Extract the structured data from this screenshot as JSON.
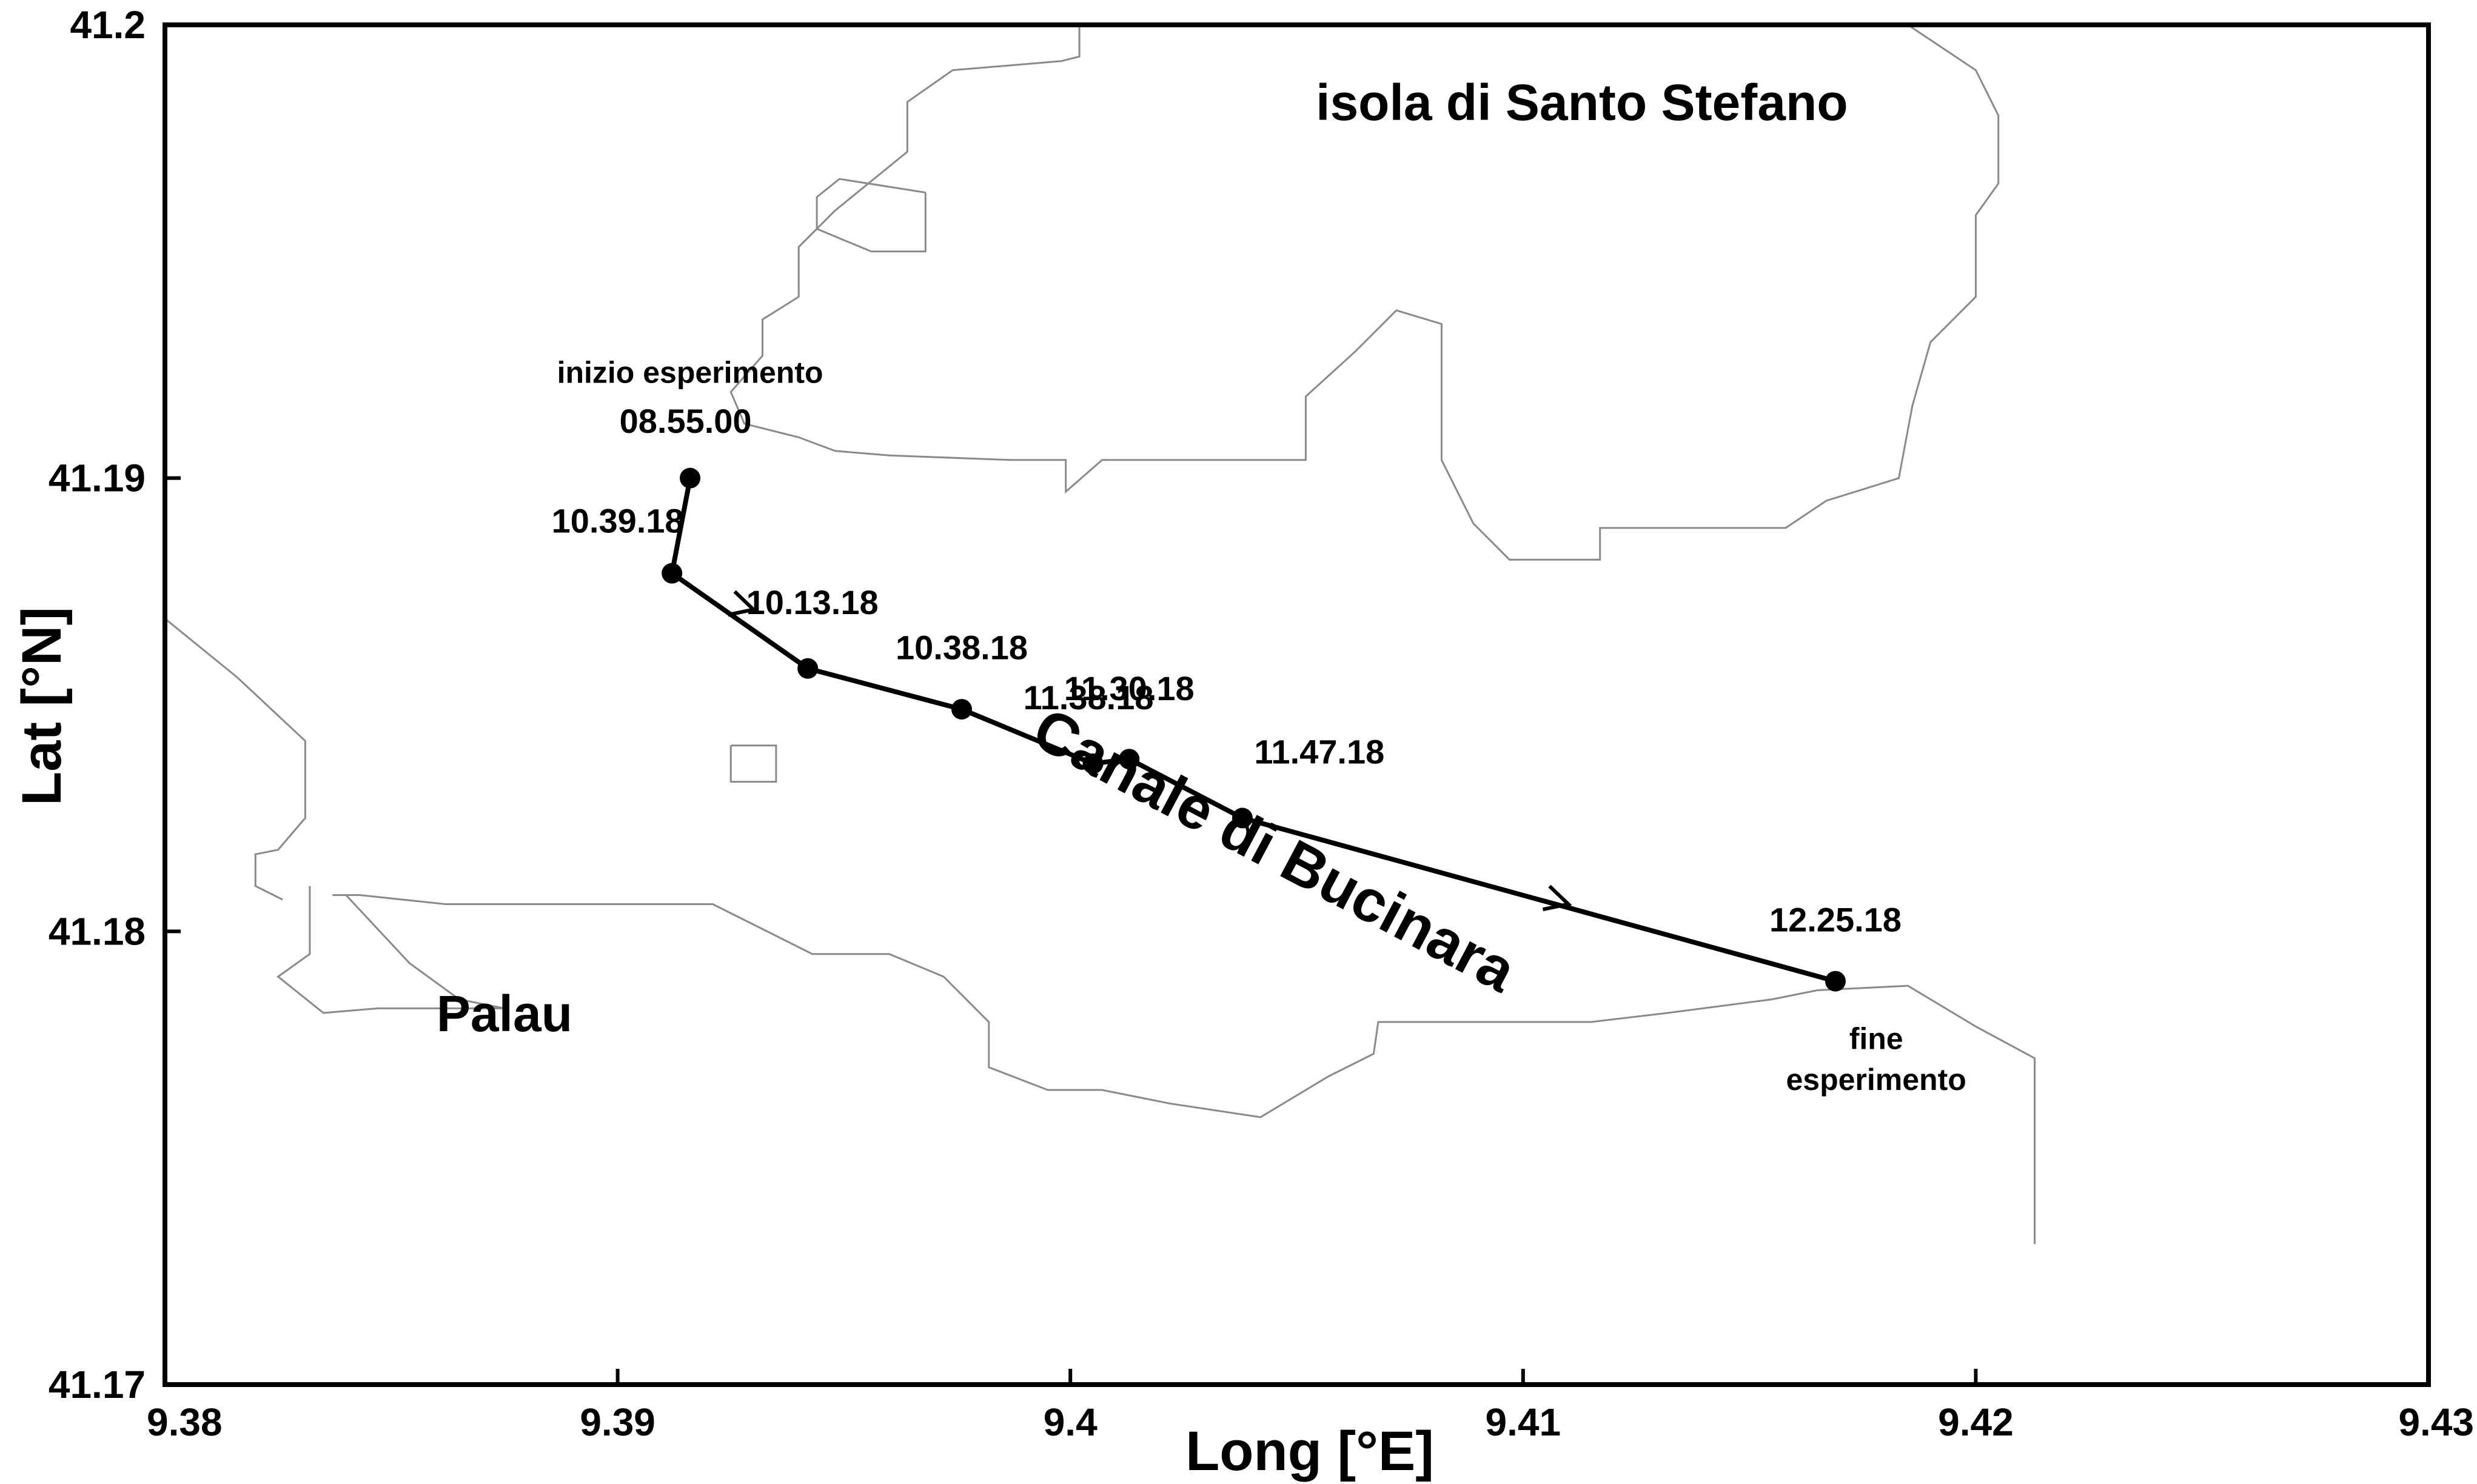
{
  "chart_data": {
    "type": "map",
    "xlabel": "Long [°E]",
    "ylabel": "Lat [°N]",
    "xlim": [
      9.38,
      9.43
    ],
    "ylim": [
      41.17,
      41.2
    ],
    "x_ticks": [
      {
        "value": 9.38,
        "label": "9.38"
      },
      {
        "value": 9.39,
        "label": "9.39"
      },
      {
        "value": 9.4,
        "label": "9.4"
      },
      {
        "value": 9.41,
        "label": "9.41"
      },
      {
        "value": 9.42,
        "label": "9.42"
      },
      {
        "value": 9.43,
        "label": "9.43"
      }
    ],
    "y_ticks": [
      {
        "value": 41.17,
        "label": "41.17"
      },
      {
        "value": 41.18,
        "label": "41.18"
      },
      {
        "value": 41.19,
        "label": "41.19"
      },
      {
        "value": 41.2,
        "label": "41.2"
      }
    ],
    "grid": false,
    "places": [
      {
        "name": "isola di Santo Stefano",
        "lon": 9.4113,
        "lat": 41.1979
      },
      {
        "name": "Palau",
        "lon": 9.3875,
        "lat": 41.1778
      },
      {
        "name": "Canale di Bucinara",
        "lon": 9.4043,
        "lat": 41.1814,
        "rotation": 28
      }
    ],
    "track": [
      {
        "time": "08.55.00",
        "lon": 9.3916,
        "lat": 41.19
      },
      {
        "time": "10.39.18",
        "lon": 9.3912,
        "lat": 41.1879
      },
      {
        "time": "10.13.18",
        "lon": 9.3942,
        "lat": 41.1858
      },
      {
        "time": "10.38.18",
        "lon": 9.3976,
        "lat": 41.1849
      },
      {
        "time": "11.38.18",
        "lon": 9.4005,
        "lat": 41.1837
      },
      {
        "time": "11.30.18",
        "lon": 9.4013,
        "lat": 41.1838
      },
      {
        "time": "11.47.18",
        "lon": 9.4038,
        "lat": 41.1825
      },
      {
        "time": "12.25.18",
        "lon": 9.4169,
        "lat": 41.1789
      }
    ],
    "track_labels": [
      {
        "text": "08.55.00",
        "lon": 9.3915,
        "lat": 41.191
      },
      {
        "text": "10.39.18",
        "lon": 9.39,
        "lat": 41.1888
      },
      {
        "text": "10.13.18",
        "lon": 9.3943,
        "lat": 41.187
      },
      {
        "text": "10.38.18",
        "lon": 9.3976,
        "lat": 41.186
      },
      {
        "text": "11.38.18",
        "lon": 9.4004,
        "lat": 41.1849
      },
      {
        "text": "11.30.18",
        "lon": 9.4013,
        "lat": 41.1851
      },
      {
        "text": "11.47.18",
        "lon": 9.4055,
        "lat": 41.1837
      },
      {
        "text": "12.25.18",
        "lon": 9.4169,
        "lat": 41.18
      }
    ],
    "annotations": [
      {
        "text": "inizio esperimento",
        "lon": 9.3916,
        "lat": 41.1921
      },
      {
        "text": "fine",
        "lon": 9.4178,
        "lat": 41.1774
      },
      {
        "text": "esperimento",
        "lon": 9.4178,
        "lat": 41.1765
      }
    ],
    "arrows": [
      {
        "lon": 9.393,
        "lat": 41.1871
      },
      {
        "lon": 9.411,
        "lat": 41.1806
      }
    ],
    "coastline": [
      [
        [
          9.3974,
          41.199
        ],
        [
          9.3998,
          41.1992
        ],
        [
          9.4002,
          41.1993
        ],
        [
          9.4002,
          41.2
        ]
      ],
      [
        [
          9.3974,
          41.199
        ],
        [
          9.3964,
          41.1983
        ],
        [
          9.3964,
          41.1972
        ],
        [
          9.3948,
          41.1959
        ],
        [
          9.394,
          41.1951
        ],
        [
          9.394,
          41.194
        ],
        [
          9.3932,
          41.1935
        ],
        [
          9.3932,
          41.1927
        ],
        [
          9.3925,
          41.1919
        ],
        [
          9.3928,
          41.1912
        ],
        [
          9.394,
          41.1909
        ],
        [
          9.3948,
          41.1906
        ],
        [
          9.396,
          41.1905
        ],
        [
          9.3987,
          41.1904
        ],
        [
          9.3999,
          41.1904
        ],
        [
          9.3999,
          41.1897
        ],
        [
          9.4007,
          41.1904
        ],
        [
          9.403,
          41.1904
        ],
        [
          9.4052,
          41.1904
        ],
        [
          9.4052,
          41.1918
        ],
        [
          9.4063,
          41.1928
        ],
        [
          9.4072,
          41.1937
        ],
        [
          9.4082,
          41.1934
        ],
        [
          9.4082,
          41.1904
        ],
        [
          9.4089,
          41.189
        ],
        [
          9.4097,
          41.1882
        ],
        [
          9.4117,
          41.1882
        ],
        [
          9.4117,
          41.1889
        ],
        [
          9.4158,
          41.1889
        ],
        [
          9.4167,
          41.1895
        ],
        [
          9.4183,
          41.19
        ],
        [
          9.4186,
          41.1916
        ],
        [
          9.419,
          41.193
        ],
        [
          9.42,
          41.194
        ],
        [
          9.42,
          41.1958
        ],
        [
          9.4205,
          41.1965
        ],
        [
          9.4205,
          41.198
        ],
        [
          9.42,
          41.199
        ],
        [
          9.4185,
          41.2
        ]
      ],
      [
        [
          9.3832,
          41.181
        ],
        [
          9.3832,
          41.1795
        ],
        [
          9.3825,
          41.179
        ],
        [
          9.3835,
          41.1782
        ],
        [
          9.3847,
          41.1783
        ],
        [
          9.386,
          41.1783
        ],
        [
          9.3875,
          41.1783
        ],
        [
          9.3865,
          41.1785
        ],
        [
          9.3854,
          41.1793
        ],
        [
          9.384,
          41.1808
        ],
        [
          9.3837,
          41.1808
        ],
        [
          9.3843,
          41.1808
        ],
        [
          9.3862,
          41.1806
        ],
        [
          9.3888,
          41.1806
        ],
        [
          9.3921,
          41.1806
        ],
        [
          9.3943,
          41.1795
        ],
        [
          9.396,
          41.1795
        ],
        [
          9.3972,
          41.179
        ],
        [
          9.3982,
          41.178
        ],
        [
          9.3982,
          41.177
        ],
        [
          9.3995,
          41.1765
        ],
        [
          9.4007,
          41.1765
        ],
        [
          9.4022,
          41.1762
        ],
        [
          9.4042,
          41.1759
        ],
        [
          9.4057,
          41.1768
        ],
        [
          9.4067,
          41.1773
        ],
        [
          9.4068,
          41.178
        ],
        [
          9.4115,
          41.178
        ],
        [
          9.4132,
          41.1782
        ],
        [
          9.4155,
          41.1785
        ],
        [
          9.4165,
          41.1787
        ],
        [
          9.4185,
          41.1788
        ],
        [
          9.42,
          41.1779
        ],
        [
          9.4213,
          41.1772
        ],
        [
          9.4213,
          41.175
        ],
        [
          9.4213,
          41.1731
        ]
      ],
      [
        [
          9.38,
          41.1869
        ],
        [
          9.3816,
          41.1856
        ],
        [
          9.3831,
          41.1842
        ],
        [
          9.3831,
          41.1825
        ],
        [
          9.3825,
          41.1818
        ],
        [
          9.382,
          41.1817
        ],
        [
          9.382,
          41.181
        ],
        [
          9.3826,
          41.1807
        ]
      ],
      [
        [
          9.3968,
          41.1963
        ],
        [
          9.3949,
          41.1966
        ],
        [
          9.3944,
          41.1962
        ],
        [
          9.3944,
          41.1955
        ],
        [
          9.3956,
          41.195
        ],
        [
          9.3968,
          41.195
        ],
        [
          9.3968,
          41.1963
        ]
      ],
      [
        [
          9.3925,
          41.1841
        ],
        [
          9.3935,
          41.1841
        ],
        [
          9.3935,
          41.1833
        ],
        [
          9.3925,
          41.1833
        ],
        [
          9.3925,
          41.1841
        ]
      ]
    ]
  }
}
